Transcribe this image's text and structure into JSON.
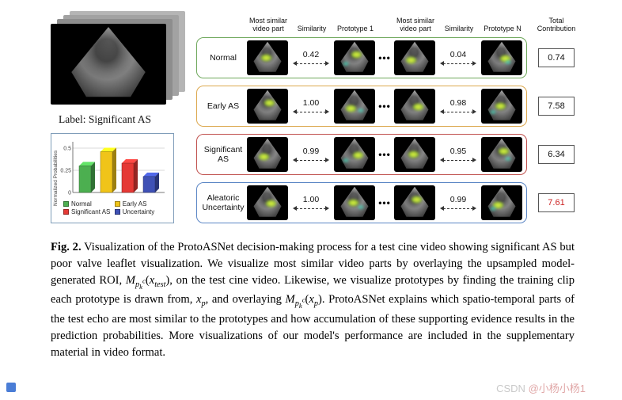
{
  "test_input": {
    "label": "Label:  Significant AS"
  },
  "chart_data": {
    "type": "bar",
    "title": "",
    "xlabel": "",
    "ylabel": "Normalized Probabilities",
    "categories": [
      "Normal",
      "Early AS",
      "Significant AS",
      "Uncertainty"
    ],
    "values": [
      0.3,
      0.46,
      0.33,
      0.18
    ],
    "colors": [
      "#4caf50",
      "#f0c419",
      "#e53935",
      "#3f51b5"
    ],
    "ylim": [
      0,
      0.5
    ],
    "yticks": [
      "0",
      "0.25",
      "0.5"
    ],
    "grid": true,
    "legend_position": "below",
    "legend": [
      {
        "label": "Normal",
        "color": "#4caf50"
      },
      {
        "label": "Early AS",
        "color": "#f0c419"
      },
      {
        "label": "Significant AS",
        "color": "#e53935"
      },
      {
        "label": "Uncertainty",
        "color": "#3f51b5"
      }
    ]
  },
  "grid": {
    "headers": {
      "most_similar_1": "Most similar video part",
      "similarity_1": "Similarity",
      "prototype_1": "Prototype 1",
      "most_similar_2": "Most similar video part",
      "similarity_2": "Similarity",
      "prototype_n": "Prototype N",
      "total": "Total Contribution"
    },
    "ellipsis": "•••",
    "roi_overlay_colors": [
      "#f4ff4a",
      "#41e0c0"
    ],
    "rows": [
      {
        "label": "Normal",
        "border": "#6fa85c",
        "sim1": "0.42",
        "sim2": "0.04",
        "total": "0.74"
      },
      {
        "label": "Early AS",
        "border": "#dca84e",
        "sim1": "1.00",
        "sim2": "0.98",
        "total": "7.58"
      },
      {
        "label": "Significant AS",
        "border": "#c0504d",
        "sim1": "0.99",
        "sim2": "0.95",
        "total": "6.34"
      },
      {
        "label": "Aleatoric Uncertainty",
        "border": "#5b86c5",
        "sim1": "1.00",
        "sim2": "0.99",
        "total": "7.61",
        "total_color": "#cc2222"
      }
    ]
  },
  "caption": {
    "fig_label": "Fig. 2.",
    "s1": "Visualization of the ProtoASNet decision-making process for a test cine video showing significant AS but poor valve leaflet visualization. We visualize most similar video parts by overlaying the upsampled model-generated ROI, ",
    "m1": {
      "M": "M",
      "p": "p",
      "k": "k",
      "c": "c",
      "o": "(",
      "x": "x",
      "s": "test",
      "cl": ")"
    },
    "s2": ", on the test cine video. Likewise, we visualize prototypes by finding the training clip each prototype is drawn from, ",
    "m2": {
      "x": "x",
      "s": "p"
    },
    "s3": ", and overlaying ",
    "m3": {
      "M": "M",
      "p": "p",
      "k": "k",
      "c": "c",
      "o": "(",
      "x": "x",
      "s": "p",
      "cl": ")"
    },
    "s4": ". ProtoASNet explains which spatio-temporal parts of the test echo are most similar to the prototypes and how accumulation of these supporting evidence results in the prediction probabilities. More visualizations of our model's performance are included in the supplementary material in video format."
  },
  "watermark": {
    "brand": "CSDN ",
    "user": "@小杨小杨1"
  }
}
